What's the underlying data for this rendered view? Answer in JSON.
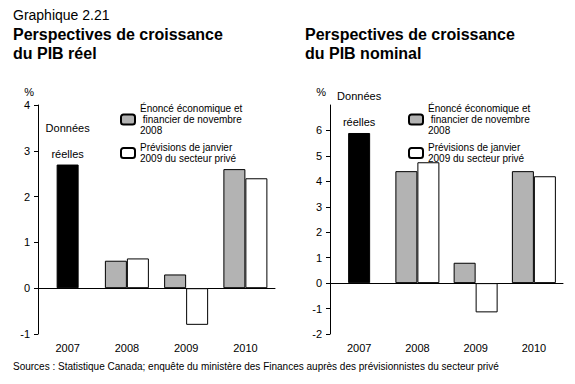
{
  "header": "Graphique 2.21",
  "source": "Sources : Statistique Canada; enquête du ministère des Finances auprès des prévisionnistes du secteur privé",
  "chart_data": [
    {
      "type": "bar",
      "title": "Perspectives de croissance du PIB réel",
      "y_label": "%",
      "categories": [
        "2007",
        "2008",
        "2009",
        "2010"
      ],
      "series": [
        {
          "color": "#000000",
          "values": [
            2.7,
            null,
            null,
            null
          ]
        },
        {
          "name": "Énoncé économique et financier de novembre 2008",
          "color": "#b3b3b3",
          "values": [
            null,
            0.6,
            0.3,
            2.6
          ]
        },
        {
          "name": "Prévisions de janvier 2009 du secteur privé",
          "color": "#ffffff",
          "values": [
            null,
            0.65,
            -0.8,
            2.4
          ]
        }
      ],
      "annotations": [
        {
          "text": "Données réelles",
          "category": "2007"
        }
      ],
      "ylim": [
        -1,
        4
      ],
      "yticks": [
        -1,
        0,
        1,
        2,
        3,
        4
      ],
      "grid": false,
      "legend": "upper right"
    },
    {
      "type": "bar",
      "title": "Perspectives de croissance du PIB nominal",
      "y_label": "%",
      "categories": [
        "2007",
        "2008",
        "2009",
        "2010"
      ],
      "series": [
        {
          "color": "#000000",
          "values": [
            5.9,
            null,
            null,
            null
          ]
        },
        {
          "name": "Énoncé économique et financier de novembre 2008",
          "color": "#b3b3b3",
          "values": [
            null,
            4.4,
            0.8,
            4.4
          ]
        },
        {
          "name": "Prévisions de janvier 2009 du secteur privé",
          "color": "#ffffff",
          "values": [
            null,
            4.75,
            -1.15,
            4.2
          ]
        }
      ],
      "annotations": [
        {
          "text": "Données réelles",
          "category": "2007"
        }
      ],
      "ylim": [
        -2,
        7
      ],
      "yticks": [
        -2,
        -1,
        0,
        1,
        2,
        3,
        4,
        5,
        6
      ],
      "grid": false,
      "legend": "upper right"
    }
  ]
}
